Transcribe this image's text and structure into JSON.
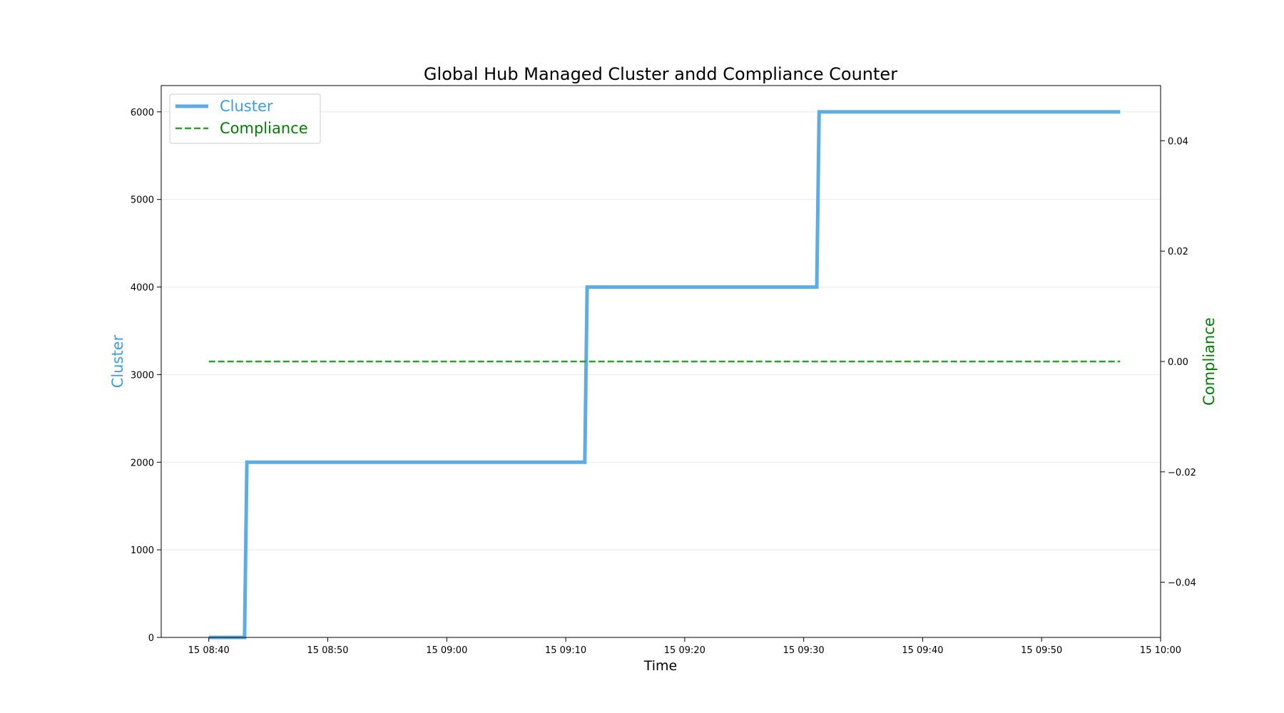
{
  "chart_data": {
    "type": "line",
    "title": "Global Hub Managed Cluster andd Compliance Counter",
    "xlabel": "Time",
    "x_ticks": [
      "15 08:40",
      "15 08:50",
      "15 09:00",
      "15 09:10",
      "15 09:20",
      "15 09:30",
      "15 09:40",
      "15 09:50",
      "15 10:00"
    ],
    "x_range_minutes": [
      "15 08:36",
      "15 10:00"
    ],
    "y_left": {
      "label": "Cluster",
      "color": "#3a9ee4",
      "ticks": [
        0,
        1000,
        2000,
        3000,
        4000,
        5000,
        6000
      ],
      "range": [
        0,
        6300
      ],
      "grid": true
    },
    "y_right": {
      "label": "Compliance",
      "color": "#008000",
      "ticks": [
        "−0.04",
        "−0.02",
        "0.00",
        "0.02",
        "0.04"
      ],
      "tick_values": [
        -0.04,
        -0.02,
        0.0,
        0.02,
        0.04
      ],
      "range": [
        -0.05,
        0.05
      ]
    },
    "legend_position": "top-left",
    "series": [
      {
        "name": "Cluster",
        "axis": "left",
        "color": "#5dade2",
        "style": "solid",
        "points": [
          [
            "15 08:40",
            0
          ],
          [
            "15 08:43",
            0
          ],
          [
            "15 08:43.2",
            2000
          ],
          [
            "15 09:11.6",
            2000
          ],
          [
            "15 09:11.8",
            4000
          ],
          [
            "15 09:31.1",
            4000
          ],
          [
            "15 09:31.3",
            6000
          ],
          [
            "15 09:56.6",
            6000
          ]
        ]
      },
      {
        "name": "Compliance",
        "axis": "right",
        "color": "#2ca02c",
        "style": "dashed",
        "points": [
          [
            "15 08:40",
            0.0
          ],
          [
            "15 09:56.6",
            0.0
          ]
        ]
      }
    ]
  }
}
